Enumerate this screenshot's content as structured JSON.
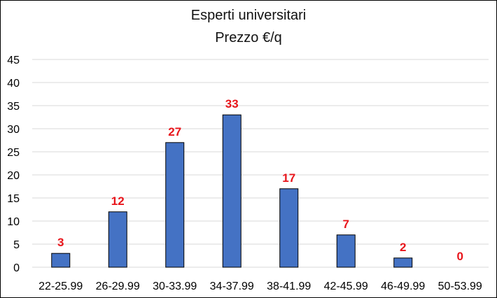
{
  "chart_data": {
    "type": "bar",
    "title": "Esperti universitari",
    "subtitle": "Prezzo €/q",
    "categories": [
      "22-25.99",
      "26-29.99",
      "30-33.99",
      "34-37.99",
      "38-41.99",
      "42-45.99",
      "46-49.99",
      "50-53.99"
    ],
    "values": [
      3,
      12,
      27,
      33,
      17,
      7,
      2,
      0
    ],
    "data_labels": [
      "3",
      "12",
      "27",
      "33",
      "17",
      "7",
      "2",
      "0"
    ],
    "xlabel": "",
    "ylabel": "",
    "ylim": [
      0,
      45
    ],
    "yticks": [
      "0",
      "5",
      "10",
      "15",
      "20",
      "25",
      "30",
      "35",
      "40",
      "45"
    ],
    "grid": true,
    "legend": "none",
    "colors": {
      "bar_fill": "#4472c4",
      "bar_stroke": "#000000",
      "data_label": "#e8151b",
      "gridline": "#d9d9d9"
    }
  }
}
